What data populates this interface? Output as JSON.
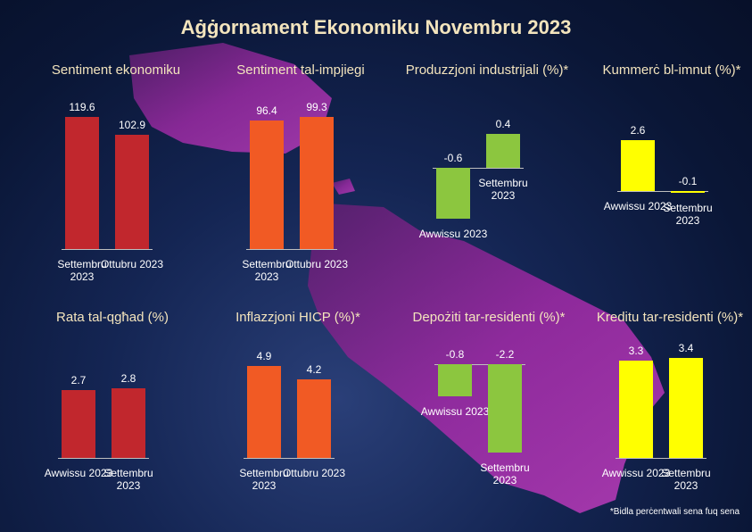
{
  "title": "Aġġornament Ekonomiku Novembru 2023",
  "note": "*Bidla perċentwali sena fuq sena",
  "chart_data": [
    {
      "type": "bar",
      "title": "Sentiment ekonomiku",
      "categories": [
        "Settembru 2023",
        "Ottubru 2023"
      ],
      "values": [
        119.6,
        102.9
      ],
      "color": "#c1272d"
    },
    {
      "type": "bar",
      "title": "Sentiment tal-impjiegi",
      "categories": [
        "Settembru 2023",
        "Ottubru 2023"
      ],
      "values": [
        96.4,
        99.3
      ],
      "color": "#f15a24"
    },
    {
      "type": "bar",
      "title": "Produzzjoni industrijali (%)*",
      "categories": [
        "Awwissu 2023",
        "Settembru 2023"
      ],
      "values": [
        -0.6,
        0.4
      ],
      "color": "#8cc63f"
    },
    {
      "type": "bar",
      "title": "Kummerċ bl-imnut (%)*",
      "categories": [
        "Awwissu 2023",
        "Settembru 2023"
      ],
      "values": [
        2.6,
        -0.1
      ],
      "color": "#ffff00"
    },
    {
      "type": "bar",
      "title": "Rata tal-qgħad (%)",
      "categories": [
        "Awwissu 2023",
        "Settembru 2023"
      ],
      "values": [
        2.7,
        2.8
      ],
      "color": "#c1272d"
    },
    {
      "type": "bar",
      "title": "Inflazzjoni HICP (%)*",
      "categories": [
        "Settembru 2023",
        "Ottubru 2023"
      ],
      "values": [
        4.9,
        4.2
      ],
      "color": "#f15a24"
    },
    {
      "type": "bar",
      "title": "Depożiti tar-residenti (%)*",
      "categories": [
        "Awwissu 2023",
        "Settembru 2023"
      ],
      "values": [
        -0.8,
        -2.2
      ],
      "color": "#8cc63f"
    },
    {
      "type": "bar",
      "title": "Kreditu tar-residenti (%)*",
      "categories": [
        "Awwissu 2023",
        "Settembru 2023"
      ],
      "values": [
        3.3,
        3.4
      ],
      "color": "#ffff00"
    }
  ]
}
